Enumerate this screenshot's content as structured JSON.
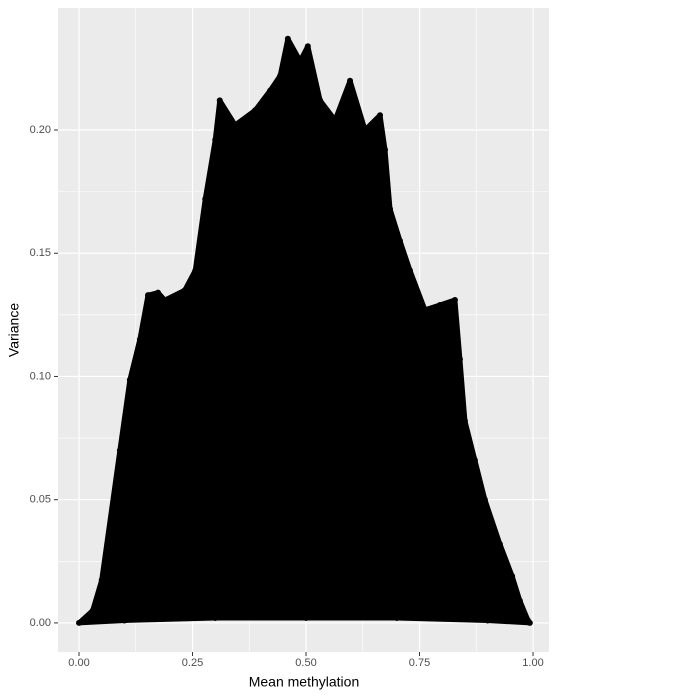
{
  "chart_data": {
    "type": "scatter",
    "x_label": "Mean methylation",
    "y_label": "Variance",
    "color": "#000000",
    "grid": true,
    "xlim": [
      -0.0463,
      1.0352
    ],
    "ylim": [
      -0.0118,
      0.2495
    ],
    "xticks": [
      {
        "value": 0,
        "label": "0.00"
      },
      {
        "value": 0.25,
        "label": "0.25"
      },
      {
        "value": 0.5,
        "label": "0.50"
      },
      {
        "value": 0.75,
        "label": "0.75"
      },
      {
        "value": 1,
        "label": "1.00"
      }
    ],
    "yticks": [
      {
        "value": 0,
        "label": "0.00"
      },
      {
        "value": 0.05,
        "label": "0.05"
      },
      {
        "value": 0.1,
        "label": "0.10"
      },
      {
        "value": 0.15,
        "label": "0.15"
      },
      {
        "value": 0.2,
        "label": "0.20"
      }
    ],
    "x": [
      0.0,
      0.03,
      0.05,
      0.09,
      0.112,
      0.134,
      0.152,
      0.174,
      0.189,
      0.233,
      0.256,
      0.278,
      0.3,
      0.31,
      0.344,
      0.388,
      0.421,
      0.443,
      0.46,
      0.487,
      0.504,
      0.531,
      0.564,
      0.597,
      0.63,
      0.663,
      0.674,
      0.685,
      0.707,
      0.729,
      0.762,
      0.795,
      0.828,
      0.839,
      0.85,
      0.872,
      0.894,
      0.927,
      0.954,
      0.971,
      0.989,
      0.993,
      0.9,
      0.7,
      0.5,
      0.3,
      0.1
    ],
    "y": [
      0.0,
      0.005,
      0.0174,
      0.07,
      0.0986,
      0.115,
      0.133,
      0.134,
      0.131,
      0.135,
      0.143,
      0.172,
      0.196,
      0.212,
      0.202,
      0.208,
      0.216,
      0.222,
      0.237,
      0.228,
      0.234,
      0.212,
      0.204,
      0.22,
      0.2,
      0.206,
      0.192,
      0.168,
      0.155,
      0.143,
      0.127,
      0.129,
      0.131,
      0.107,
      0.082,
      0.066,
      0.05,
      0.032,
      0.019,
      0.009,
      0.001,
      0.0,
      0.001,
      0.002,
      0.002,
      0.002,
      0.001
    ]
  }
}
